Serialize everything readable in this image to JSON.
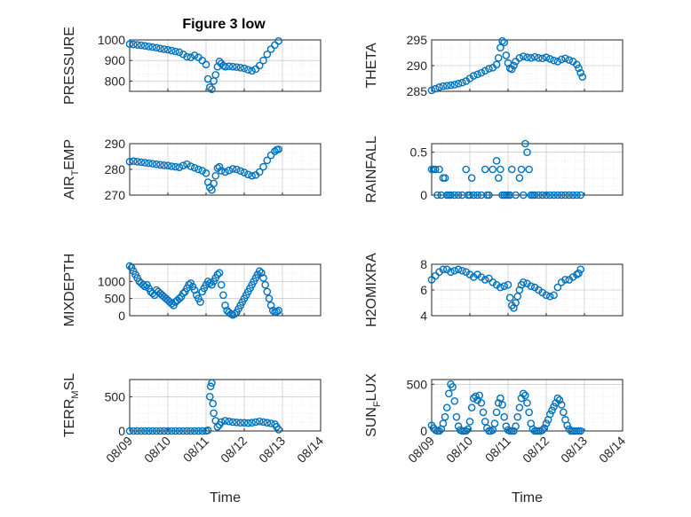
{
  "figure": {
    "title": "Figure 3 low",
    "marker_color": "#0072BD",
    "grid": true,
    "minor_grid": true
  },
  "chart_data": [
    {
      "type": "scatter",
      "ylabel_text": "PRESSURE",
      "xlim": [
        "08/09",
        "08/14"
      ],
      "ylim": [
        750,
        1000
      ],
      "yticks": [
        800,
        900,
        1000
      ],
      "xticks": [
        "08/09",
        "08/10",
        "08/11",
        "08/12",
        "08/13",
        "08/14"
      ],
      "show_xticklabels": false,
      "series": [
        {
          "x": [
            9.0,
            9.1,
            9.2,
            9.3,
            9.4,
            9.5,
            9.6,
            9.7,
            9.8,
            9.9,
            10.0,
            10.1,
            10.2,
            10.3,
            10.4,
            10.5,
            10.6,
            10.7,
            10.8,
            10.9,
            11.0,
            11.05,
            11.1,
            11.15,
            11.2,
            11.25,
            11.3,
            11.35,
            11.4,
            11.45,
            11.5,
            11.6,
            11.7,
            11.8,
            11.9,
            12.0,
            12.1,
            12.2,
            12.3,
            12.4,
            12.5,
            12.6,
            12.7,
            12.8,
            12.9
          ],
          "y": [
            980,
            978,
            976,
            974,
            971,
            968,
            965,
            962,
            958,
            955,
            952,
            948,
            944,
            940,
            930,
            918,
            915,
            925,
            915,
            900,
            880,
            810,
            770,
            760,
            800,
            830,
            870,
            895,
            885,
            875,
            870,
            872,
            870,
            868,
            865,
            862,
            855,
            850,
            858,
            875,
            900,
            930,
            955,
            975,
            995
          ]
        }
      ]
    },
    {
      "type": "scatter",
      "ylabel_text": "THETA",
      "xlim": [
        "08/09",
        "08/14"
      ],
      "ylim": [
        285,
        295
      ],
      "yticks": [
        285,
        290,
        295
      ],
      "xticks": [
        "08/09",
        "08/10",
        "08/11",
        "08/12",
        "08/13",
        "08/14"
      ],
      "show_xticklabels": false,
      "series": [
        {
          "x": [
            9.0,
            9.1,
            9.2,
            9.3,
            9.4,
            9.5,
            9.6,
            9.7,
            9.8,
            9.9,
            10.0,
            10.1,
            10.2,
            10.3,
            10.4,
            10.5,
            10.6,
            10.7,
            10.75,
            10.8,
            10.85,
            10.9,
            10.95,
            11.0,
            11.05,
            11.1,
            11.15,
            11.2,
            11.3,
            11.4,
            11.5,
            11.6,
            11.7,
            11.8,
            11.9,
            12.0,
            12.1,
            12.2,
            12.3,
            12.4,
            12.5,
            12.6,
            12.7,
            12.8,
            12.85,
            12.9,
            12.95
          ],
          "y": [
            285.2,
            285.5,
            285.8,
            286.0,
            286.1,
            286.2,
            286.3,
            286.5,
            286.7,
            287.0,
            287.5,
            288.0,
            288.3,
            288.6,
            289.0,
            289.4,
            289.6,
            290.2,
            291.5,
            293.5,
            294.8,
            294.5,
            292.0,
            290.5,
            289.5,
            289.3,
            290.0,
            290.8,
            291.5,
            291.8,
            291.6,
            291.5,
            291.7,
            291.5,
            291.4,
            291.6,
            291.3,
            291.0,
            290.8,
            291.2,
            291.4,
            291.1,
            290.8,
            290.2,
            289.5,
            288.6,
            287.8
          ]
        }
      ]
    },
    {
      "type": "scatter",
      "ylabel_text": "AIR",
      "ylabel_sub": "T",
      "ylabel_rest": "EMP",
      "xlim": [
        "08/09",
        "08/14"
      ],
      "ylim": [
        270,
        290
      ],
      "yticks": [
        270,
        280,
        290
      ],
      "xticks": [
        "08/09",
        "08/10",
        "08/11",
        "08/12",
        "08/13",
        "08/14"
      ],
      "show_xticklabels": false,
      "series": [
        {
          "x": [
            9.0,
            9.1,
            9.2,
            9.3,
            9.4,
            9.5,
            9.6,
            9.7,
            9.8,
            9.9,
            10.0,
            10.1,
            10.2,
            10.3,
            10.4,
            10.5,
            10.6,
            10.7,
            10.8,
            10.9,
            11.0,
            11.05,
            11.1,
            11.15,
            11.2,
            11.25,
            11.3,
            11.35,
            11.4,
            11.5,
            11.6,
            11.7,
            11.8,
            11.9,
            12.0,
            12.1,
            12.2,
            12.3,
            12.4,
            12.5,
            12.6,
            12.7,
            12.8,
            12.85,
            12.9
          ],
          "y": [
            283.0,
            283.2,
            283.0,
            282.8,
            282.6,
            282.4,
            282.2,
            282.0,
            281.8,
            281.6,
            281.5,
            281.2,
            281.0,
            280.8,
            281.5,
            282.0,
            281.2,
            280.6,
            280.0,
            279.5,
            278.5,
            275.0,
            273.0,
            272.0,
            274.5,
            277.5,
            280.5,
            281.0,
            279.5,
            279.0,
            279.6,
            280.2,
            280.0,
            279.4,
            278.8,
            278.0,
            277.5,
            277.8,
            279.0,
            281.0,
            283.5,
            285.5,
            287.0,
            287.6,
            287.8
          ]
        }
      ]
    },
    {
      "type": "scatter",
      "ylabel_text": "RAINFALL",
      "xlim": [
        "08/09",
        "08/14"
      ],
      "ylim": [
        0,
        0.6
      ],
      "yticks": [
        0,
        0.5
      ],
      "xticks": [
        "08/09",
        "08/10",
        "08/11",
        "08/12",
        "08/13",
        "08/14"
      ],
      "show_xticklabels": false,
      "series": [
        {
          "x": [
            9.0,
            9.05,
            9.1,
            9.15,
            9.2,
            9.25,
            9.3,
            9.35,
            9.4,
            9.45,
            9.5,
            9.6,
            9.7,
            9.8,
            9.9,
            9.95,
            10.0,
            10.05,
            10.1,
            10.2,
            10.3,
            10.4,
            10.45,
            10.5,
            10.6,
            10.7,
            10.75,
            10.8,
            10.85,
            10.9,
            10.95,
            11.0,
            11.05,
            11.1,
            11.2,
            11.3,
            11.35,
            11.4,
            11.45,
            11.5,
            11.55,
            11.6,
            11.65,
            11.7,
            11.8,
            11.9,
            12.0,
            12.1,
            12.2,
            12.3,
            12.4,
            12.5,
            12.6,
            12.7,
            12.8,
            12.9
          ],
          "y": [
            0.3,
            0.3,
            0.3,
            0.0,
            0.3,
            0.0,
            0.2,
            0.2,
            0.0,
            0.0,
            0.0,
            0.0,
            0.0,
            0.0,
            0.3,
            0.0,
            0.0,
            0.2,
            0.0,
            0.0,
            0.0,
            0.3,
            0.0,
            0.0,
            0.3,
            0.4,
            0.2,
            0.3,
            0.0,
            0.0,
            0.0,
            0.0,
            0.0,
            0.3,
            0.0,
            0.2,
            0.3,
            0.0,
            0.6,
            0.5,
            0.3,
            0.0,
            0.0,
            0.0,
            0.0,
            0.0,
            0.0,
            0.0,
            0.0,
            0.0,
            0.0,
            0.0,
            0.0,
            0.0,
            0.0,
            0.0
          ]
        }
      ]
    },
    {
      "type": "scatter",
      "ylabel_text": "MIXDEPTH",
      "xlim": [
        "08/09",
        "08/14"
      ],
      "ylim": [
        0,
        1500
      ],
      "yticks": [
        0,
        500,
        1000
      ],
      "xticks": [
        "08/09",
        "08/10",
        "08/11",
        "08/12",
        "08/13",
        "08/14"
      ],
      "show_xticklabels": false,
      "series": [
        {
          "x": [
            9.0,
            9.05,
            9.1,
            9.15,
            9.2,
            9.25,
            9.3,
            9.35,
            9.4,
            9.45,
            9.5,
            9.55,
            9.6,
            9.65,
            9.7,
            9.75,
            9.8,
            9.85,
            9.9,
            9.95,
            10.0,
            10.05,
            10.1,
            10.15,
            10.2,
            10.25,
            10.3,
            10.35,
            10.4,
            10.45,
            10.5,
            10.55,
            10.6,
            10.65,
            10.7,
            10.75,
            10.8,
            10.85,
            10.9,
            10.95,
            11.0,
            11.05,
            11.1,
            11.15,
            11.2,
            11.25,
            11.3,
            11.35,
            11.4,
            11.45,
            11.5,
            11.55,
            11.6,
            11.65,
            11.7,
            11.75,
            11.8,
            11.85,
            11.9,
            11.95,
            12.0,
            12.05,
            12.1,
            12.15,
            12.2,
            12.25,
            12.3,
            12.35,
            12.4,
            12.45,
            12.5,
            12.55,
            12.6,
            12.65,
            12.7,
            12.75,
            12.8,
            12.85,
            12.9
          ],
          "y": [
            1450,
            1400,
            1300,
            1200,
            1100,
            1000,
            950,
            900,
            850,
            900,
            800,
            700,
            650,
            600,
            750,
            700,
            650,
            600,
            550,
            500,
            450,
            400,
            350,
            300,
            400,
            450,
            500,
            550,
            650,
            700,
            800,
            900,
            950,
            850,
            750,
            600,
            500,
            400,
            700,
            800,
            900,
            1000,
            950,
            900,
            1000,
            1100,
            1200,
            1250,
            900,
            600,
            300,
            150,
            100,
            50,
            20,
            50,
            100,
            200,
            300,
            400,
            500,
            600,
            700,
            800,
            900,
            1000,
            1100,
            1200,
            1300,
            1250,
            1100,
            900,
            700,
            500,
            300,
            150,
            100,
            120,
            150
          ]
        }
      ]
    },
    {
      "type": "scatter",
      "ylabel_text": "H2OMIXRA",
      "xlim": [
        "08/09",
        "08/14"
      ],
      "ylim": [
        4,
        8
      ],
      "yticks": [
        4,
        6,
        8
      ],
      "xticks": [
        "08/09",
        "08/10",
        "08/11",
        "08/12",
        "08/13",
        "08/14"
      ],
      "show_xticklabels": false,
      "series": [
        {
          "x": [
            9.0,
            9.1,
            9.2,
            9.3,
            9.4,
            9.5,
            9.6,
            9.7,
            9.8,
            9.9,
            10.0,
            10.1,
            10.2,
            10.3,
            10.4,
            10.5,
            10.6,
            10.7,
            10.8,
            10.9,
            11.0,
            11.05,
            11.1,
            11.15,
            11.2,
            11.25,
            11.3,
            11.35,
            11.4,
            11.5,
            11.6,
            11.7,
            11.8,
            11.9,
            12.0,
            12.1,
            12.2,
            12.3,
            12.4,
            12.5,
            12.6,
            12.7,
            12.8,
            12.85,
            12.9
          ],
          "y": [
            6.8,
            7.1,
            7.4,
            7.6,
            7.6,
            7.4,
            7.5,
            7.6,
            7.5,
            7.4,
            7.2,
            7.0,
            7.2,
            7.0,
            6.8,
            6.9,
            6.6,
            6.4,
            6.2,
            6.3,
            6.4,
            5.4,
            4.8,
            4.6,
            5.0,
            5.5,
            6.0,
            6.4,
            6.6,
            6.5,
            6.3,
            6.2,
            6.0,
            5.8,
            5.6,
            5.5,
            5.6,
            6.2,
            6.6,
            6.8,
            6.8,
            7.0,
            7.2,
            7.3,
            7.6
          ]
        }
      ]
    },
    {
      "type": "scatter",
      "ylabel_text": "TERR",
      "ylabel_sub": "M",
      "ylabel_rest": "SL",
      "xlim": [
        "08/09",
        "08/14"
      ],
      "ylim": [
        0,
        750
      ],
      "yticks": [
        0,
        500
      ],
      "xticks": [
        "08/09",
        "08/10",
        "08/11",
        "08/12",
        "08/13",
        "08/14"
      ],
      "show_xticklabels": true,
      "xlabel": "Time",
      "series": [
        {
          "x": [
            9.0,
            9.1,
            9.2,
            9.3,
            9.4,
            9.5,
            9.6,
            9.7,
            9.8,
            9.9,
            10.0,
            10.1,
            10.2,
            10.3,
            10.4,
            10.5,
            10.6,
            10.7,
            10.8,
            10.9,
            11.0,
            11.05,
            11.1,
            11.12,
            11.15,
            11.18,
            11.2,
            11.25,
            11.3,
            11.35,
            11.4,
            11.5,
            11.6,
            11.7,
            11.8,
            11.9,
            12.0,
            12.1,
            12.2,
            12.3,
            12.4,
            12.5,
            12.6,
            12.7,
            12.8,
            12.85,
            12.9
          ],
          "y": [
            0,
            0,
            0,
            0,
            0,
            0,
            0,
            0,
            0,
            0,
            0,
            0,
            0,
            0,
            0,
            0,
            0,
            0,
            0,
            0,
            0,
            10,
            500,
            650,
            700,
            400,
            260,
            150,
            60,
            90,
            130,
            150,
            140,
            130,
            125,
            120,
            120,
            115,
            120,
            130,
            140,
            130,
            120,
            110,
            100,
            60,
            20
          ]
        }
      ]
    },
    {
      "type": "scatter",
      "ylabel_text": "SUN",
      "ylabel_sub": "F",
      "ylabel_rest": "LUX",
      "xlim": [
        "08/09",
        "08/14"
      ],
      "ylim": [
        0,
        550
      ],
      "yticks": [
        0,
        500
      ],
      "xticks": [
        "08/09",
        "08/10",
        "08/11",
        "08/12",
        "08/13",
        "08/14"
      ],
      "show_xticklabels": true,
      "xlabel": "Time",
      "series": [
        {
          "x": [
            9.0,
            9.05,
            9.1,
            9.15,
            9.2,
            9.25,
            9.3,
            9.35,
            9.4,
            9.45,
            9.5,
            9.55,
            9.6,
            9.65,
            9.7,
            9.75,
            9.8,
            9.85,
            9.9,
            9.95,
            10.0,
            10.05,
            10.1,
            10.15,
            10.2,
            10.25,
            10.3,
            10.35,
            10.4,
            10.45,
            10.5,
            10.55,
            10.6,
            10.65,
            10.7,
            10.75,
            10.8,
            10.85,
            10.9,
            10.95,
            11.0,
            11.05,
            11.1,
            11.15,
            11.2,
            11.25,
            11.3,
            11.35,
            11.4,
            11.45,
            11.5,
            11.55,
            11.6,
            11.65,
            11.7,
            11.75,
            11.8,
            11.85,
            11.9,
            11.95,
            12.0,
            12.05,
            12.1,
            12.15,
            12.2,
            12.25,
            12.3,
            12.35,
            12.4,
            12.45,
            12.5,
            12.55,
            12.6,
            12.65,
            12.7,
            12.75,
            12.8,
            12.85,
            12.9
          ],
          "y": [
            60,
            30,
            10,
            0,
            0,
            20,
            80,
            150,
            250,
            400,
            500,
            470,
            320,
            150,
            50,
            10,
            0,
            0,
            0,
            20,
            100,
            250,
            350,
            370,
            330,
            380,
            300,
            200,
            100,
            30,
            0,
            0,
            10,
            80,
            200,
            300,
            350,
            280,
            150,
            50,
            10,
            0,
            0,
            0,
            50,
            150,
            250,
            350,
            400,
            380,
            300,
            200,
            80,
            20,
            0,
            0,
            0,
            0,
            10,
            30,
            80,
            120,
            180,
            220,
            260,
            300,
            350,
            330,
            280,
            200,
            120,
            60,
            20,
            0,
            0,
            0,
            0,
            0,
            0
          ]
        }
      ]
    }
  ]
}
